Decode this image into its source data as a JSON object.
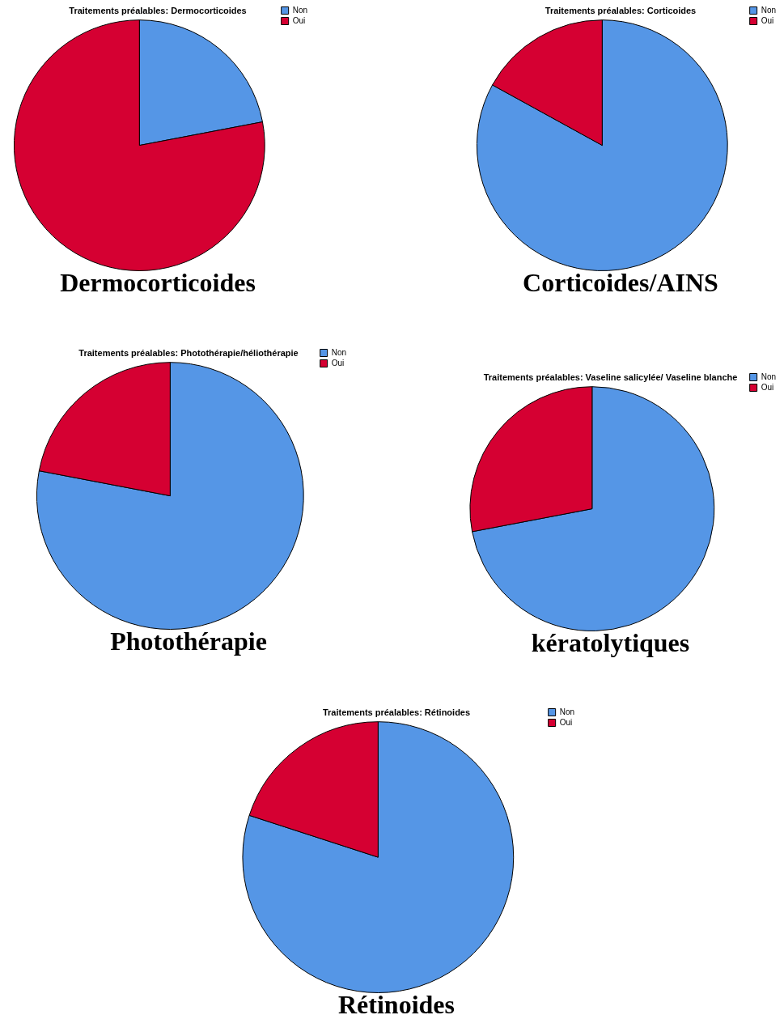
{
  "chart_data": [
    {
      "type": "pie",
      "title": "Traitements préalables: Dermocorticoides",
      "categories": [
        "Non",
        "Oui"
      ],
      "values": [
        22,
        78
      ],
      "colors": [
        "#5596e6",
        "#d50032"
      ],
      "legend": "top right",
      "annotations": [
        "Dermocorticoides"
      ]
    },
    {
      "type": "pie",
      "title": "Traitements préalables: Corticoides",
      "categories": [
        "Non",
        "Oui"
      ],
      "values": [
        83,
        17
      ],
      "colors": [
        "#5596e6",
        "#d50032"
      ],
      "legend": "top right",
      "annotations": [
        "Corticoides/AINS"
      ]
    },
    {
      "type": "pie",
      "title": "Traitements préalables: Photothérapie/héliothérapie",
      "categories": [
        "Non",
        "Oui"
      ],
      "values": [
        78,
        22
      ],
      "colors": [
        "#5596e6",
        "#d50032"
      ],
      "legend": "top right",
      "annotations": [
        "Photothérapie"
      ]
    },
    {
      "type": "pie",
      "title": "Traitements préalables: Vaseline salicylée/ Vaseline blanche",
      "categories": [
        "Non",
        "Oui"
      ],
      "values": [
        72,
        28
      ],
      "colors": [
        "#5596e6",
        "#d50032"
      ],
      "legend": "top right",
      "annotations": [
        "kératolytiques"
      ]
    },
    {
      "type": "pie",
      "title": "Traitements préalables: Rétinoides",
      "categories": [
        "Non",
        "Oui"
      ],
      "values": [
        80,
        20
      ],
      "colors": [
        "#5596e6",
        "#d50032"
      ],
      "legend": "top right",
      "annotations": [
        "Rétinoides"
      ]
    }
  ]
}
